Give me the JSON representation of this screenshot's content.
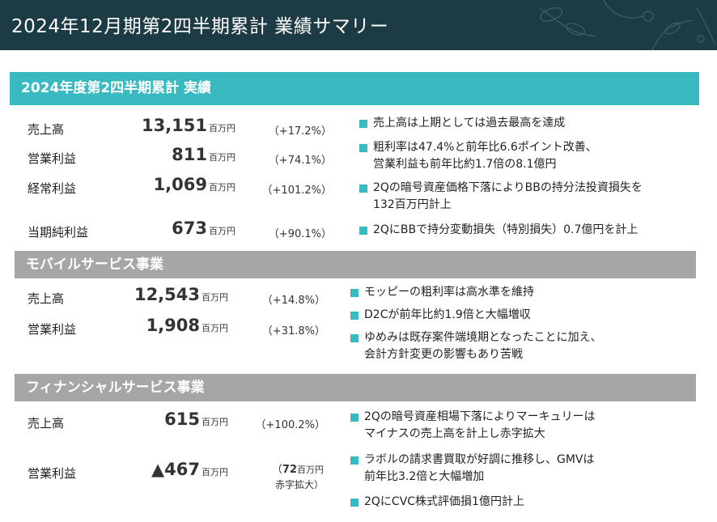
{
  "header": {
    "title": "2024年12月期第2四半期累計 業績サマリー"
  },
  "section1": {
    "title": "2024年度第2四半期累計 実績",
    "metrics": [
      {
        "label": "売上高",
        "value": "13,151",
        "unit": "百万円",
        "change": "（+17.2%）"
      },
      {
        "label": "営業利益",
        "value": "811",
        "unit": "百万円",
        "change": "（+74.1%）"
      },
      {
        "label": "経常利益",
        "value": "1,069",
        "unit": "百万円",
        "change": "（+101.2%）"
      },
      {
        "label": "当期純利益",
        "value": "673",
        "unit": "百万円",
        "change": "（+90.1%）"
      }
    ],
    "bullets": [
      {
        "lines": [
          "売上高は上期としては過去最高を達成"
        ]
      },
      {
        "lines": [
          "粗利率は47.4%と前年比6.6ポイント改善、",
          "営業利益も前年比約1.7倍の8.1億円"
        ]
      },
      {
        "lines": [
          "2Qの暗号資産価格下落によりBBの持分法投資損失を",
          "132百万円計上"
        ]
      },
      {
        "lines": [
          "2QにBBで持分変動損失（特別損失）0.7億円を計上"
        ]
      }
    ]
  },
  "section2": {
    "title": "モバイルサービス事業",
    "metrics": [
      {
        "label": "売上高",
        "value": "12,543",
        "unit": "百万円",
        "change": "（+14.8%）"
      },
      {
        "label": "営業利益",
        "value": "1,908",
        "unit": "百万円",
        "change": "（+31.8%）"
      }
    ],
    "bullets": [
      {
        "lines": [
          "モッピーの粗利率は高水準を維持"
        ]
      },
      {
        "lines": [
          "D2Cが前年比約1.9倍と大幅増収"
        ]
      },
      {
        "lines": [
          "ゆめみは既存案件端境期となったことに加え、",
          "会計方針変更の影響もあり苦戦"
        ]
      }
    ]
  },
  "section3": {
    "title": "フィナンシャルサービス事業",
    "metrics": [
      {
        "label": "売上高",
        "value": "615",
        "unit": "百万円",
        "change": "（+100.2%）"
      },
      {
        "label": "営業利益",
        "value": "▲467",
        "unit": "百万円",
        "change_value": "72",
        "change_unit": "百万円",
        "change_note": "赤字拡大）",
        "change_open": "（"
      }
    ],
    "bullets": [
      {
        "lines": [
          "2Qの暗号資産相場下落によりマーキュリーは",
          "マイナスの売上高を計上し赤字拡大"
        ]
      },
      {
        "lines": [
          "ラボルの請求書買取が好調に推移し、GMVは",
          "前年比3.2倍と大幅増加"
        ]
      },
      {
        "lines": [
          "2QにCVC株式評価損1億円計上"
        ]
      }
    ]
  }
}
